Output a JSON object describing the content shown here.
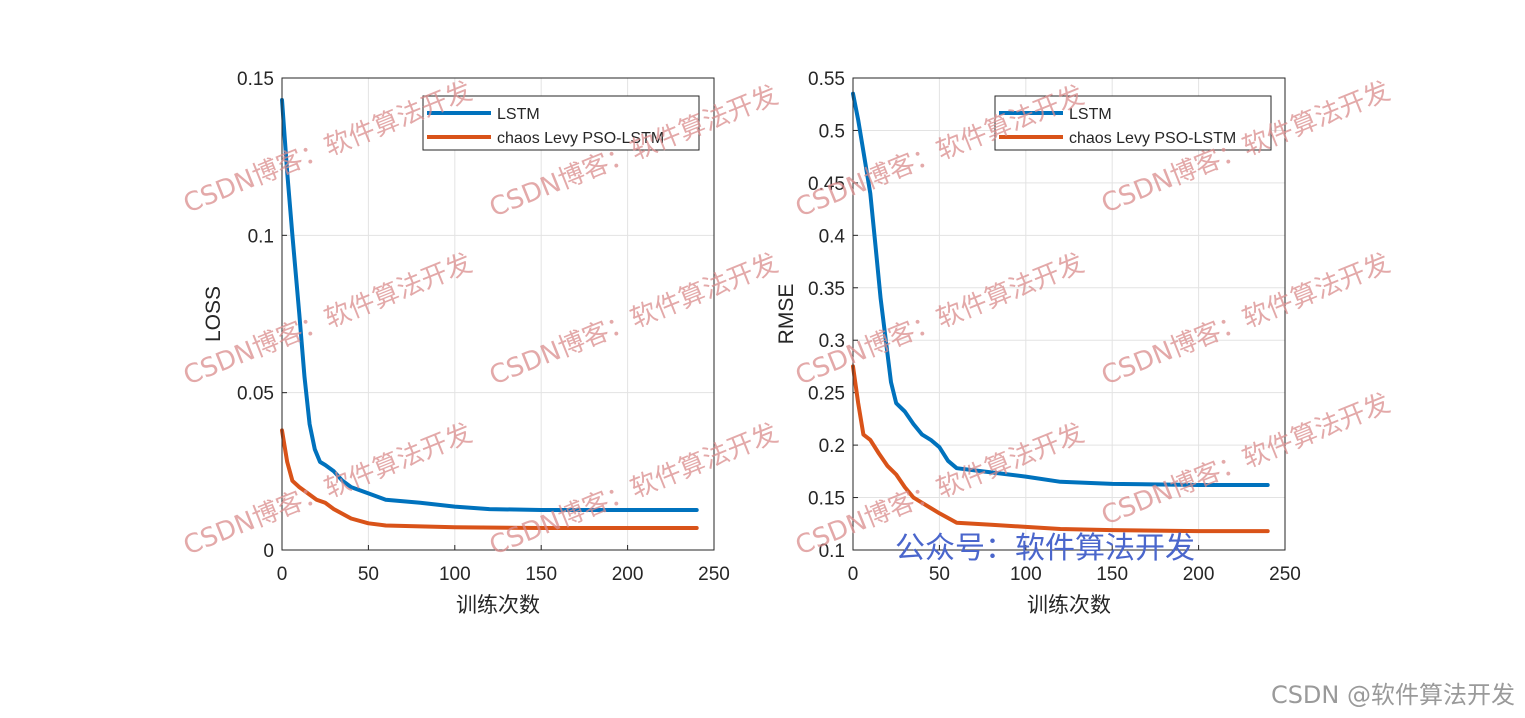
{
  "chart_data": [
    {
      "type": "line",
      "title": "",
      "xlabel": "训练次数",
      "ylabel": "LOSS",
      "xlim": [
        0,
        250
      ],
      "ylim": [
        0,
        0.15
      ],
      "xticks": [
        "0",
        "50",
        "100",
        "150",
        "200",
        "250"
      ],
      "yticks": [
        "0",
        "0.05",
        "0.1",
        "0.15"
      ],
      "grid": true,
      "legend_position": "top-right",
      "series": [
        {
          "name": "LSTM",
          "color": "#0072BD",
          "x": [
            0,
            3,
            6,
            10,
            13,
            16,
            19,
            22,
            25,
            30,
            35,
            40,
            50,
            60,
            80,
            100,
            120,
            150,
            200,
            240
          ],
          "y": [
            0.143,
            0.12,
            0.1,
            0.075,
            0.055,
            0.04,
            0.032,
            0.028,
            0.027,
            0.025,
            0.022,
            0.02,
            0.018,
            0.016,
            0.015,
            0.0138,
            0.013,
            0.0127,
            0.0127,
            0.0127
          ]
        },
        {
          "name": "chaos Levy PSO-LSTM",
          "color": "#D95319",
          "x": [
            0,
            3,
            6,
            10,
            15,
            20,
            25,
            30,
            40,
            50,
            60,
            80,
            100,
            150,
            200,
            240
          ],
          "y": [
            0.038,
            0.028,
            0.022,
            0.02,
            0.018,
            0.016,
            0.015,
            0.013,
            0.01,
            0.0085,
            0.0078,
            0.0075,
            0.0072,
            0.007,
            0.007,
            0.007
          ]
        }
      ]
    },
    {
      "type": "line",
      "title": "",
      "xlabel": "训练次数",
      "ylabel": "RMSE",
      "xlim": [
        0,
        250
      ],
      "ylim": [
        0.1,
        0.55
      ],
      "xticks": [
        "0",
        "50",
        "100",
        "150",
        "200",
        "250"
      ],
      "yticks": [
        "0.1",
        "0.15",
        "0.2",
        "0.25",
        "0.3",
        "0.35",
        "0.4",
        "0.45",
        "0.5",
        "0.55"
      ],
      "grid": true,
      "legend_position": "top-right",
      "series": [
        {
          "name": "LSTM",
          "color": "#0072BD",
          "x": [
            0,
            3,
            6,
            10,
            13,
            16,
            19,
            22,
            25,
            30,
            35,
            40,
            45,
            50,
            55,
            60,
            80,
            100,
            120,
            150,
            200,
            240
          ],
          "y": [
            0.535,
            0.51,
            0.48,
            0.44,
            0.39,
            0.34,
            0.3,
            0.26,
            0.24,
            0.232,
            0.22,
            0.21,
            0.205,
            0.198,
            0.185,
            0.178,
            0.174,
            0.17,
            0.165,
            0.163,
            0.162,
            0.162
          ]
        },
        {
          "name": "chaos Levy PSO-LSTM",
          "color": "#D95319",
          "x": [
            0,
            3,
            6,
            10,
            15,
            20,
            25,
            30,
            35,
            40,
            50,
            60,
            80,
            100,
            120,
            150,
            200,
            240
          ],
          "y": [
            0.275,
            0.24,
            0.21,
            0.205,
            0.192,
            0.18,
            0.172,
            0.16,
            0.15,
            0.145,
            0.135,
            0.126,
            0.124,
            0.122,
            0.12,
            0.119,
            0.118,
            0.118
          ]
        }
      ]
    }
  ],
  "colors": {
    "watermark": "#d98c8c",
    "overlay_text": "#4a66cc",
    "footer": "#9a9a9a"
  },
  "watermark_text": "CSDN博客：软件算法开发",
  "overlay_text": "公众号：软件算法开发",
  "footer_text": "CSDN @软件算法开发"
}
